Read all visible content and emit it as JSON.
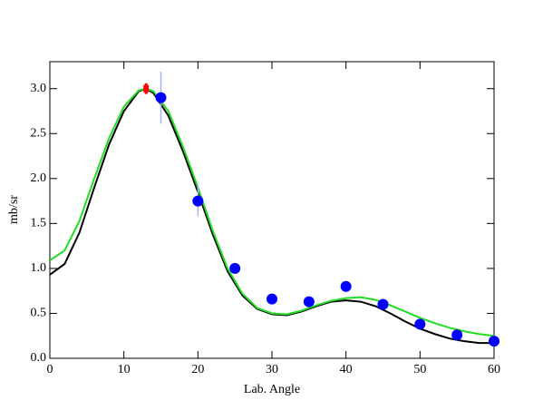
{
  "chart_data": {
    "type": "line",
    "x_label": "Lab. Angle",
    "y_label": "mb/sr",
    "xlim": [
      0,
      60
    ],
    "ylim": [
      0,
      3.3
    ],
    "xticks": [
      0,
      10,
      20,
      30,
      40,
      50,
      60
    ],
    "yticks": [
      {
        "value": 0,
        "label": "0.0"
      },
      0.5,
      {
        "value": 1,
        "label": "1.0"
      },
      1.5,
      {
        "value": 2,
        "label": "2.0"
      },
      2.5,
      {
        "value": 3,
        "label": "3.0"
      }
    ],
    "x": [
      0,
      2,
      4,
      6,
      8,
      10,
      12,
      13,
      14,
      16,
      18,
      20,
      22,
      24,
      26,
      28,
      30,
      32,
      34,
      36,
      38,
      40,
      42,
      44,
      46,
      48,
      50,
      52,
      54,
      56,
      58,
      60
    ],
    "series": [
      {
        "color": "#000000",
        "values": [
          0.93,
          1.05,
          1.4,
          1.9,
          2.38,
          2.75,
          2.97,
          3.0,
          2.95,
          2.7,
          2.3,
          1.85,
          1.38,
          0.97,
          0.7,
          0.55,
          0.49,
          0.48,
          0.52,
          0.58,
          0.63,
          0.645,
          0.63,
          0.58,
          0.5,
          0.41,
          0.33,
          0.27,
          0.22,
          0.19,
          0.17,
          0.17
        ]
      },
      {
        "color": "#22dd22",
        "values": [
          1.09,
          1.2,
          1.53,
          2.0,
          2.45,
          2.8,
          2.98,
          3.0,
          2.97,
          2.75,
          2.35,
          1.9,
          1.42,
          1.0,
          0.72,
          0.56,
          0.5,
          0.49,
          0.53,
          0.59,
          0.64,
          0.67,
          0.68,
          0.65,
          0.59,
          0.52,
          0.45,
          0.39,
          0.34,
          0.3,
          0.27,
          0.25
        ]
      },
      {
        "color": "#0000ff",
        "error_color": "#aab4ee",
        "marker": "circle",
        "x": [
          15,
          20,
          25,
          30,
          35,
          40,
          45,
          50,
          55,
          60
        ],
        "values": [
          2.9,
          1.75,
          1.0,
          0.66,
          0.63,
          0.8,
          0.6,
          0.38,
          0.26,
          0.19
        ],
        "errors": [
          0.29,
          0.17,
          0.03,
          0.02,
          0.02,
          0.05,
          0.02,
          0.02,
          0.01,
          0.01
        ]
      },
      {
        "color": "#ff0000",
        "error_color": "#ff0000",
        "marker": "square",
        "x": [
          13
        ],
        "values": [
          3.0
        ],
        "errors": [
          0.06
        ]
      }
    ]
  }
}
